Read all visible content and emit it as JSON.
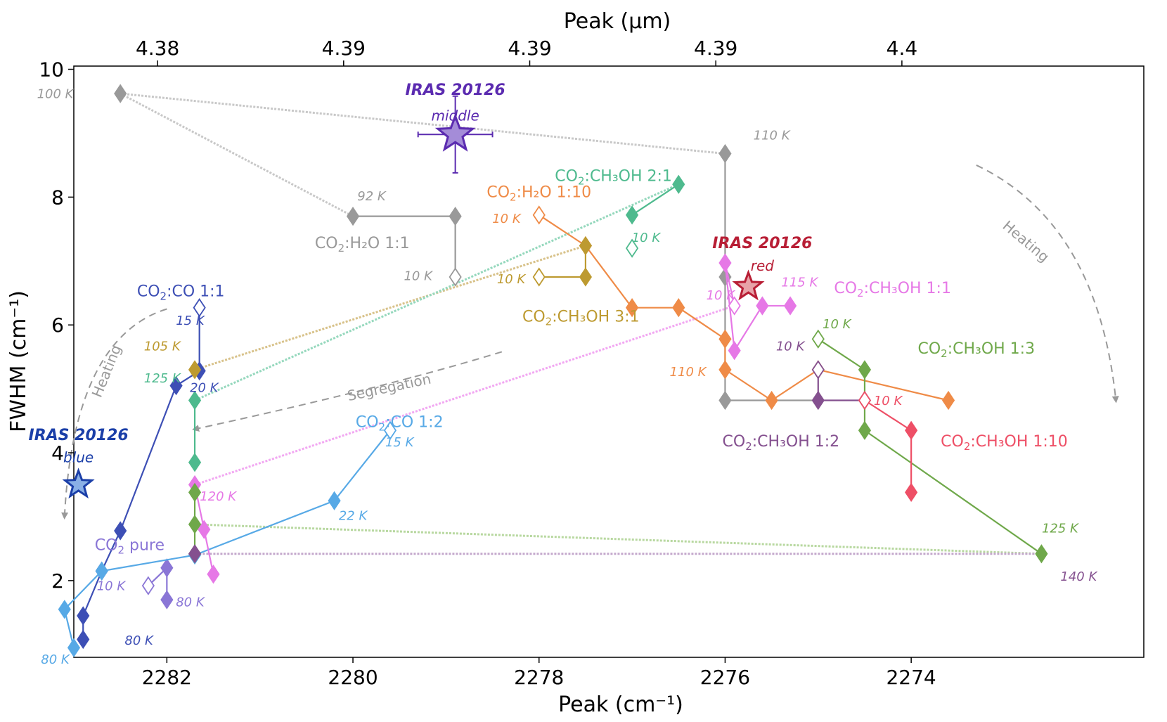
{
  "chart_data": {
    "type": "scatter",
    "title": "",
    "xlabel": "Peak (cm⁻¹)",
    "ylabel": "FWHM (cm⁻¹)",
    "x2label": "Peak (μm)",
    "xlim": [
      2283.0,
      2271.5
    ],
    "ylim": [
      0.8,
      10.05
    ],
    "xticks": [
      2282,
      2280,
      2278,
      2276,
      2274
    ],
    "yticks": [
      2,
      4,
      6,
      8,
      10
    ],
    "top_ticks": [
      {
        "x": 2282.1,
        "label": "4.38"
      },
      {
        "x": 2280.1,
        "label": "4.39"
      },
      {
        "x": 2278.1,
        "label": "4.39"
      },
      {
        "x": 2276.1,
        "label": "4.39"
      },
      {
        "x": 2274.1,
        "label": "4.4"
      }
    ],
    "series": [
      {
        "name": "CO₂ pure",
        "label_main": "CO",
        "label_sub": "2",
        "label_rest": " pure",
        "label_pos": [
          2282.4,
          2.48
        ],
        "color": "#8a76d6",
        "points": [
          [
            2282.2,
            1.92,
            true
          ],
          [
            2282.0,
            2.2,
            false
          ],
          [
            2282.0,
            1.7,
            false
          ]
        ],
        "link": [
          [
            0,
            1
          ],
          [
            1,
            2
          ]
        ],
        "temps": [
          {
            "text": "10 K",
            "x": 2282.6,
            "y": 1.85
          },
          {
            "text": "80 K",
            "x": 2281.75,
            "y": 1.6
          }
        ]
      },
      {
        "name": "CO₂:CO 1:1",
        "label_main": "CO",
        "label_sub": "2",
        "label_rest": ":CO 1:1",
        "label_pos": [
          2281.85,
          6.45
        ],
        "color": "#3d4fb5",
        "points": [
          [
            2281.65,
            6.27,
            true
          ],
          [
            2281.65,
            5.28,
            false
          ],
          [
            2281.9,
            5.05,
            false
          ],
          [
            2282.5,
            2.78,
            false
          ],
          [
            2282.7,
            2.15,
            false
          ],
          [
            2282.9,
            1.45,
            false
          ],
          [
            2282.9,
            1.08,
            false
          ]
        ],
        "link": [
          [
            0,
            1
          ],
          [
            1,
            2
          ],
          [
            2,
            3
          ],
          [
            3,
            4
          ],
          [
            4,
            5
          ],
          [
            5,
            6
          ]
        ],
        "temps": [
          {
            "text": "15 K",
            "x": 2281.75,
            "y": 6.0
          },
          {
            "text": "20 K",
            "x": 2281.6,
            "y": 4.95
          },
          {
            "text": "80 K",
            "x": 2282.3,
            "y": 1.0
          }
        ]
      },
      {
        "name": "CO₂:CO 1:2",
        "label_main": "CO",
        "label_sub": "2",
        "label_rest": ":CO 1:2",
        "label_pos": [
          2279.5,
          4.4
        ],
        "color": "#57a9e6",
        "points": [
          [
            2279.6,
            4.35,
            true
          ],
          [
            2280.2,
            3.25,
            false
          ],
          [
            2281.7,
            2.4,
            false
          ],
          [
            2282.7,
            2.15,
            false
          ],
          [
            2283.1,
            1.55,
            false
          ],
          [
            2283.0,
            0.95,
            false
          ]
        ],
        "link": [
          [
            0,
            1
          ],
          [
            1,
            2
          ],
          [
            2,
            3
          ],
          [
            3,
            4
          ],
          [
            4,
            5
          ]
        ],
        "temps": [
          {
            "text": "15 K",
            "x": 2279.5,
            "y": 4.1
          },
          {
            "text": "22 K",
            "x": 2280.0,
            "y": 2.95
          },
          {
            "text": "80 K",
            "x": 2283.2,
            "y": 0.7
          }
        ]
      },
      {
        "name": "CO₂:H₂O 1:1",
        "label_main": "CO",
        "label_sub": "2",
        "label_rest": ":H₂O 1:1",
        "label_pos": [
          2279.9,
          7.2
        ],
        "color": "#999999",
        "points": [
          [
            2282.5,
            9.62,
            false
          ],
          [
            2280.0,
            7.7,
            false
          ],
          [
            2278.9,
            7.7,
            false
          ],
          [
            2278.9,
            6.75,
            true
          ],
          [
            2276.0,
            8.68,
            false
          ],
          [
            2276.0,
            6.75,
            false
          ],
          [
            2276.0,
            4.82,
            false
          ],
          [
            2275.0,
            4.82,
            false
          ]
        ],
        "link": [
          [
            1,
            2
          ],
          [
            2,
            3
          ],
          [
            4,
            5
          ],
          [
            5,
            6
          ],
          [
            6,
            7
          ]
        ],
        "temps": [
          {
            "text": "100 K",
            "x": 2283.2,
            "y": 9.55
          },
          {
            "text": "92 K",
            "x": 2279.8,
            "y": 7.95
          },
          {
            "text": "10 K",
            "x": 2279.3,
            "y": 6.7
          },
          {
            "text": "110 K",
            "x": 2275.5,
            "y": 8.9
          }
        ]
      },
      {
        "name": "CO₂:H₂O 1:10",
        "label_main": "CO",
        "label_sub": "2",
        "label_rest": ":H₂O 1:10",
        "label_pos": [
          2278.0,
          8.0
        ],
        "color": "#ef8b47",
        "points": [
          [
            2278.0,
            7.72,
            true
          ],
          [
            2277.5,
            7.24,
            false
          ],
          [
            2277.0,
            6.27,
            false
          ],
          [
            2276.5,
            6.27,
            false
          ],
          [
            2276.0,
            5.78,
            false
          ],
          [
            2276.0,
            5.3,
            false
          ],
          [
            2275.5,
            4.82,
            false
          ],
          [
            2275.0,
            5.3,
            false
          ],
          [
            2273.6,
            4.82,
            false
          ]
        ],
        "link": [
          [
            0,
            1
          ],
          [
            1,
            2
          ],
          [
            2,
            3
          ],
          [
            3,
            4
          ],
          [
            4,
            5
          ],
          [
            5,
            6
          ],
          [
            6,
            7
          ],
          [
            7,
            8
          ]
        ],
        "temps": [
          {
            "text": "10 K",
            "x": 2278.35,
            "y": 7.6
          },
          {
            "text": "110 K",
            "x": 2276.4,
            "y": 5.2
          }
        ]
      },
      {
        "name": "CO₂:CH₃OH 3:1",
        "label_main": "CO",
        "label_sub": "2",
        "label_rest": ":CH₃OH 3:1",
        "label_pos": [
          2277.55,
          6.05
        ],
        "color": "#bd9a30",
        "points": [
          [
            2278.0,
            6.75,
            true
          ],
          [
            2277.5,
            6.75,
            false
          ],
          [
            2277.5,
            7.24,
            false
          ],
          [
            2281.7,
            5.3,
            false
          ]
        ],
        "link": [
          [
            0,
            1
          ],
          [
            1,
            2
          ]
        ],
        "temps": [
          {
            "text": "10 K",
            "x": 2278.3,
            "y": 6.65
          },
          {
            "text": "105 K",
            "x": 2282.05,
            "y": 5.6
          }
        ]
      },
      {
        "name": "CO₂:CH₃OH 2:1",
        "label_main": "CO",
        "label_sub": "2",
        "label_rest": ":CH₃OH 2:1",
        "label_pos": [
          2277.2,
          8.25
        ],
        "color": "#4eba8e",
        "points": [
          [
            2276.5,
            8.2,
            false
          ],
          [
            2277.0,
            7.72,
            false
          ],
          [
            2277.0,
            7.2,
            true
          ],
          [
            2281.7,
            4.82,
            false
          ],
          [
            2281.7,
            3.85,
            false
          ]
        ],
        "link": [
          [
            0,
            1
          ],
          [
            3,
            4
          ]
        ],
        "temps": [
          {
            "text": "10 K",
            "x": 2276.85,
            "y": 7.3
          },
          {
            "text": "125 K",
            "x": 2282.05,
            "y": 5.1
          }
        ]
      },
      {
        "name": "CO₂:CH₃OH 1:1",
        "label_main": "CO",
        "label_sub": "2",
        "label_rest": ":CH₃OH 1:1",
        "label_pos": [
          2274.2,
          6.5
        ],
        "color": "#e678e6",
        "points": [
          [
            2276.0,
            6.97,
            false
          ],
          [
            2275.9,
            6.3,
            true
          ],
          [
            2275.9,
            5.6,
            false
          ],
          [
            2275.6,
            6.3,
            false
          ],
          [
            2275.3,
            6.3,
            false
          ],
          [
            2281.7,
            3.5,
            false
          ],
          [
            2281.6,
            2.8,
            false
          ],
          [
            2281.5,
            2.1,
            false
          ]
        ],
        "link": [
          [
            0,
            1
          ],
          [
            0,
            2
          ],
          [
            2,
            3
          ],
          [
            3,
            4
          ],
          [
            5,
            6
          ],
          [
            6,
            7
          ]
        ],
        "temps": [
          {
            "text": "10 K",
            "x": 2276.05,
            "y": 6.4
          },
          {
            "text": "115 K",
            "x": 2275.2,
            "y": 6.6
          },
          {
            "text": "120 K",
            "x": 2281.45,
            "y": 3.25
          }
        ]
      },
      {
        "name": "CO₂:CH₃OH 1:3",
        "label_main": "CO",
        "label_sub": "2",
        "label_rest": ":CH₃OH 1:3",
        "label_pos": [
          2273.3,
          5.55
        ],
        "color": "#6fa84a",
        "points": [
          [
            2275.0,
            5.78,
            true
          ],
          [
            2274.5,
            5.3,
            false
          ],
          [
            2274.5,
            4.35,
            false
          ],
          [
            2272.6,
            2.42,
            false
          ],
          [
            2281.7,
            3.38,
            false
          ],
          [
            2281.7,
            2.88,
            false
          ],
          [
            2281.7,
            2.42,
            false
          ]
        ],
        "link": [
          [
            0,
            1
          ],
          [
            1,
            2
          ],
          [
            2,
            3
          ],
          [
            4,
            5
          ],
          [
            5,
            6
          ]
        ],
        "temps": [
          {
            "text": "10 K",
            "x": 2274.8,
            "y": 5.95
          },
          {
            "text": "125 K",
            "x": 2272.4,
            "y": 2.75
          }
        ]
      },
      {
        "name": "CO₂:CH₃OH 1:2",
        "label_main": "CO",
        "label_sub": "2",
        "label_rest": ":CH₃OH 1:2",
        "label_pos": [
          2275.4,
          4.1
        ],
        "color": "#84508f",
        "points": [
          [
            2275.0,
            5.3,
            true
          ],
          [
            2275.0,
            4.82,
            false
          ],
          [
            2274.5,
            4.82,
            false
          ],
          [
            2281.7,
            2.42,
            false
          ]
        ],
        "link": [
          [
            0,
            1
          ],
          [
            1,
            2
          ]
        ],
        "temps": [
          {
            "text": "10 K",
            "x": 2275.3,
            "y": 5.6
          },
          {
            "text": "140 K",
            "x": 2272.2,
            "y": 2.0
          }
        ]
      },
      {
        "name": "CO₂:CH₃OH 1:10",
        "label_main": "CO",
        "label_sub": "2",
        "label_rest": ":CH₃OH 1:10",
        "label_pos": [
          2273.0,
          4.1
        ],
        "color": "#ee4f66",
        "points": [
          [
            2274.5,
            4.82,
            true
          ],
          [
            2274.0,
            4.35,
            false
          ],
          [
            2274.0,
            3.38,
            false
          ]
        ],
        "link": [
          [
            0,
            1
          ],
          [
            1,
            2
          ]
        ],
        "temps": [
          {
            "text": "10 K",
            "x": 2274.25,
            "y": 4.75
          }
        ]
      }
    ],
    "segregation_links": [
      {
        "color": "#c8c8c8",
        "from": [
          2282.5,
          9.62
        ],
        "to": [
          2276.0,
          8.68
        ]
      },
      {
        "color": "#c8c8c8",
        "from": [
          2282.5,
          9.62
        ],
        "to": [
          2280.0,
          7.7
        ]
      },
      {
        "color": "#d8c28a",
        "from": [
          2277.5,
          7.24
        ],
        "to": [
          2281.7,
          5.3
        ]
      },
      {
        "color": "#95d8bd",
        "from": [
          2276.5,
          8.2
        ],
        "to": [
          2281.7,
          4.82
        ]
      },
      {
        "color": "#f2a8f2",
        "from": [
          2275.9,
          6.3
        ],
        "to": [
          2281.7,
          3.5
        ]
      },
      {
        "color": "#b8d8a0",
        "from": [
          2272.6,
          2.42
        ],
        "to": [
          2281.7,
          2.88
        ]
      },
      {
        "color": "#c4a8cc",
        "from": [
          2272.6,
          2.42
        ],
        "to": [
          2281.7,
          2.42
        ]
      }
    ],
    "observations": [
      {
        "name": "IRAS 20126",
        "subname": "middle",
        "x": 2278.9,
        "y": 8.98,
        "xerr": 0.4,
        "yerr": 0.6,
        "color": "#5b2bb0",
        "fill": "#a48cd8",
        "size": 26,
        "name_pos": [
          2278.9,
          9.6
        ],
        "sub_pos": [
          2278.9,
          9.2
        ]
      },
      {
        "name": "IRAS 20126",
        "subname": "red",
        "x": 2275.75,
        "y": 6.6,
        "xerr": 0,
        "yerr": 0,
        "color": "#b81e35",
        "fill": "#e8a3a8",
        "size": 20,
        "name_pos": [
          2275.6,
          7.2
        ],
        "sub_pos": [
          2275.6,
          6.85
        ]
      },
      {
        "name": "IRAS 20126",
        "subname": "blue",
        "x": 2282.95,
        "y": 3.5,
        "xerr": 0,
        "yerr": 0,
        "color": "#1b3fa8",
        "fill": "#8ab0e6",
        "size": 20,
        "name_pos": [
          2282.95,
          4.2
        ],
        "sub_pos": [
          2282.95,
          3.85
        ]
      }
    ],
    "annotations": [
      {
        "text": "Segregation",
        "x": 2279.6,
        "y": 4.95,
        "rotate": -12,
        "color": "#999999"
      },
      {
        "text": "Heating",
        "x": 2282.6,
        "y": 5.25,
        "rotate": -68,
        "color": "#999999"
      },
      {
        "text": "Heating",
        "x": 2272.8,
        "y": 7.25,
        "rotate": 40,
        "color": "#999999"
      }
    ]
  }
}
